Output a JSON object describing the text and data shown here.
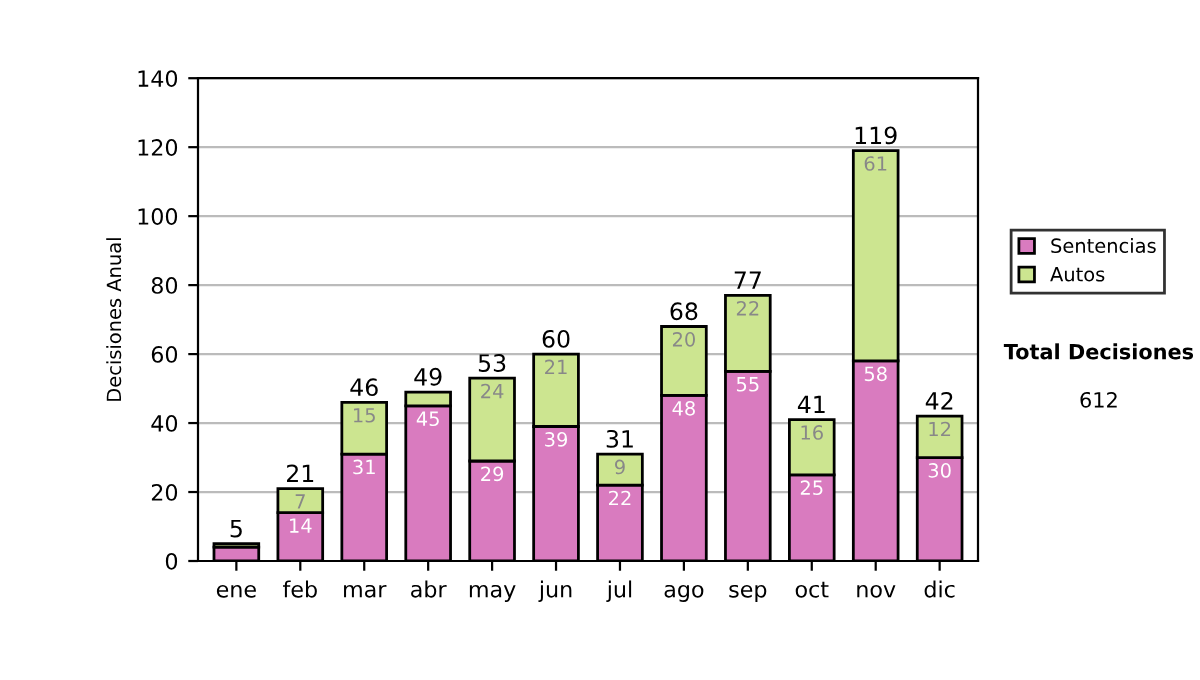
{
  "chart_data": {
    "type": "bar",
    "stacked": true,
    "ylabel": "Decisiones Anual",
    "categories": [
      "ene",
      "feb",
      "mar",
      "abr",
      "may",
      "jun",
      "jul",
      "ago",
      "sep",
      "oct",
      "nov",
      "dic"
    ],
    "series": [
      {
        "name": "Sentencias",
        "color": "#d97bbf",
        "values": [
          4,
          14,
          31,
          45,
          29,
          39,
          22,
          48,
          55,
          25,
          58,
          30
        ],
        "value_labels": [
          null,
          "14",
          "31",
          "45",
          "29",
          "39",
          "22",
          "48",
          "55",
          "25",
          "58",
          "30"
        ]
      },
      {
        "name": "Autos",
        "color": "#cce590",
        "values": [
          1,
          7,
          15,
          4,
          24,
          21,
          9,
          20,
          22,
          16,
          61,
          12
        ],
        "value_labels": [
          null,
          "7",
          "15",
          null,
          "24",
          "21",
          "9",
          "20",
          "22",
          "16",
          "61",
          "12"
        ]
      }
    ],
    "totals": [
      "5",
      "21",
      "46",
      "49",
      "53",
      "60",
      "31",
      "68",
      "77",
      "41",
      "119",
      "42"
    ],
    "ylim": [
      0,
      140
    ],
    "yticks": [
      0,
      20,
      40,
      60,
      80,
      100,
      120,
      140
    ],
    "grid": "y",
    "legend": "right",
    "annotations": [
      "Total Decisiones",
      "612"
    ]
  }
}
